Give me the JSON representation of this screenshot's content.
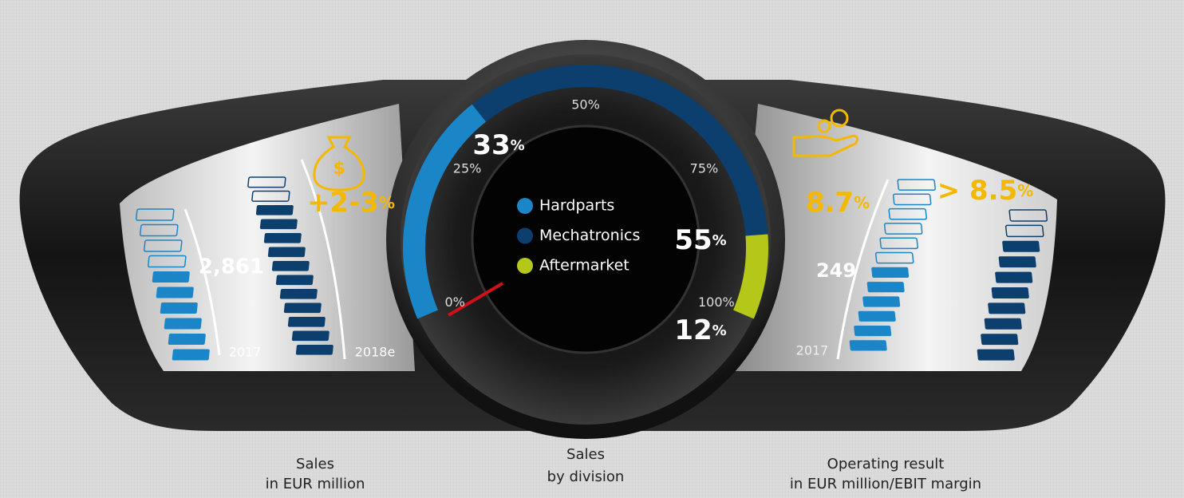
{
  "sales": {
    "title": "Sales",
    "subtitle": "in EUR million",
    "value": "2,861",
    "year_start": "2017",
    "year_end": "2018e",
    "growth": "+2-3",
    "unit": "%"
  },
  "gauge": {
    "title": "Sales",
    "subtitle": "by division",
    "unit": "%",
    "ticks": [
      {
        "value": 0,
        "label": "0%"
      },
      {
        "value": 25,
        "label": "25%"
      },
      {
        "value": 50,
        "label": "50%"
      },
      {
        "value": 75,
        "label": "75%"
      },
      {
        "value": 100,
        "label": "100%"
      }
    ],
    "segments": [
      {
        "name": "Hardparts",
        "color": "#1a86c8",
        "value": 33
      },
      {
        "name": "Mechatronics",
        "color": "#0d3f6e",
        "value": 55
      },
      {
        "name": "Aftermarket",
        "color": "#b5c81a",
        "value": 12
      }
    ]
  },
  "operating": {
    "title": "Operating result",
    "subtitle": "in EUR million/EBIT margin",
    "value": "249",
    "year_start": "2017",
    "margin": "8.7",
    "margin_target": "> 8.5",
    "unit": "%"
  }
}
